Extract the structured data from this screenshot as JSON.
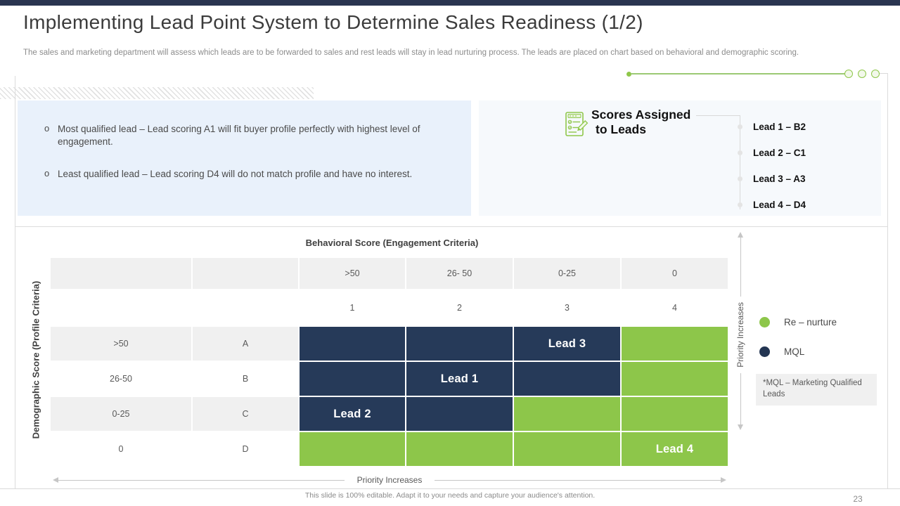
{
  "slide": {
    "title": "Implementing Lead Point System to Determine Sales Readiness (1/2)",
    "subtitle": "The sales and marketing department will assess which leads are to be forwarded to sales and rest leads will stay in lead nurturing process. The leads are placed on chart based on behavioral and demographic scoring.",
    "footer": "This slide is 100% editable. Adapt it to your needs and capture your audience's attention.",
    "page_number": "23"
  },
  "bullets": [
    "Most qualified lead –  Lead scoring A1 will fit buyer profile perfectly with highest level of engagement.",
    "Least qualified lead – Lead scoring D4 will do not match profile and have no interest."
  ],
  "scores_panel": {
    "icon": "checklist-pencil-icon",
    "title_line1": "Scores Assigned",
    "title_line2": "to Leads",
    "items": [
      "Lead 1 – B2",
      "Lead 2 – C1",
      "Lead 3 – A3",
      "Lead 4 – D4"
    ]
  },
  "matrix": {
    "x_axis_title": "Behavioral Score (Engagement Criteria)",
    "y_axis_title": "Demographic Score (Profile Criteria)",
    "col_headers": [
      ">50",
      "26- 50",
      "0-25",
      "0"
    ],
    "col_numbers": [
      "1",
      "2",
      "3",
      "4"
    ],
    "rows": [
      {
        "range": ">50",
        "letter": "A",
        "cells": [
          {
            "color": "navy",
            "label": ""
          },
          {
            "color": "navy",
            "label": ""
          },
          {
            "color": "navy",
            "label": "Lead 3"
          },
          {
            "color": "green",
            "label": ""
          }
        ]
      },
      {
        "range": "26-50",
        "letter": "B",
        "cells": [
          {
            "color": "navy",
            "label": ""
          },
          {
            "color": "navy",
            "label": "Lead 1"
          },
          {
            "color": "navy",
            "label": ""
          },
          {
            "color": "green",
            "label": ""
          }
        ]
      },
      {
        "range": "0-25",
        "letter": "C",
        "cells": [
          {
            "color": "navy",
            "label": "Lead 2"
          },
          {
            "color": "navy",
            "label": ""
          },
          {
            "color": "green",
            "label": ""
          },
          {
            "color": "green",
            "label": ""
          }
        ]
      },
      {
        "range": "0",
        "letter": "D",
        "cells": [
          {
            "color": "green",
            "label": ""
          },
          {
            "color": "green",
            "label": ""
          },
          {
            "color": "green",
            "label": ""
          },
          {
            "color": "green",
            "label": "Lead 4"
          }
        ]
      }
    ],
    "priority_x_label": "Priority Increases",
    "priority_y_label": "Priority Increases"
  },
  "legend": {
    "items": [
      {
        "label": "Re – nurture",
        "color": "#8DC64A"
      },
      {
        "label": "MQL",
        "color": "#233552"
      }
    ],
    "note": "*MQL – Marketing Qualified Leads"
  },
  "progress_indicator": {
    "filled_steps": 1,
    "hollow_steps": 3
  },
  "colors": {
    "navy_cell": "#263A59",
    "green_cell": "#8DC64A",
    "top_bar": "#2A3550",
    "bullets_box_bg": "#E9F1FB",
    "panel_bg": "#F6F9FC",
    "gray_cell": "#F0F0F0"
  }
}
